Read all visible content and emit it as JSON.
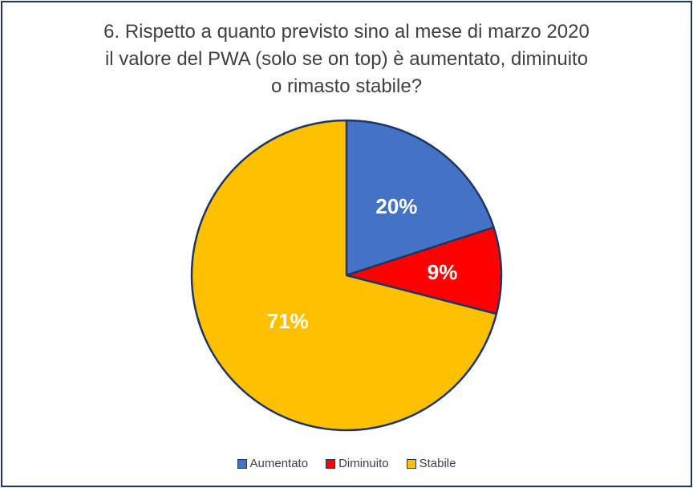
{
  "chart_data": {
    "type": "pie",
    "title_lines": [
      "6. Rispetto a quanto previsto sino al mese di marzo 2020",
      "il valore del PWA (solo se on top) è aumentato, diminuito",
      "o rimasto stabile?"
    ],
    "categories": [
      "Aumentato",
      "Diminuito",
      "Stabile"
    ],
    "values": [
      20,
      9,
      71
    ],
    "labels": [
      "20%",
      "9%",
      "71%"
    ],
    "colors": [
      "#4472c4",
      "#ff0000",
      "#ffc000"
    ],
    "legend_position": "bottom"
  }
}
